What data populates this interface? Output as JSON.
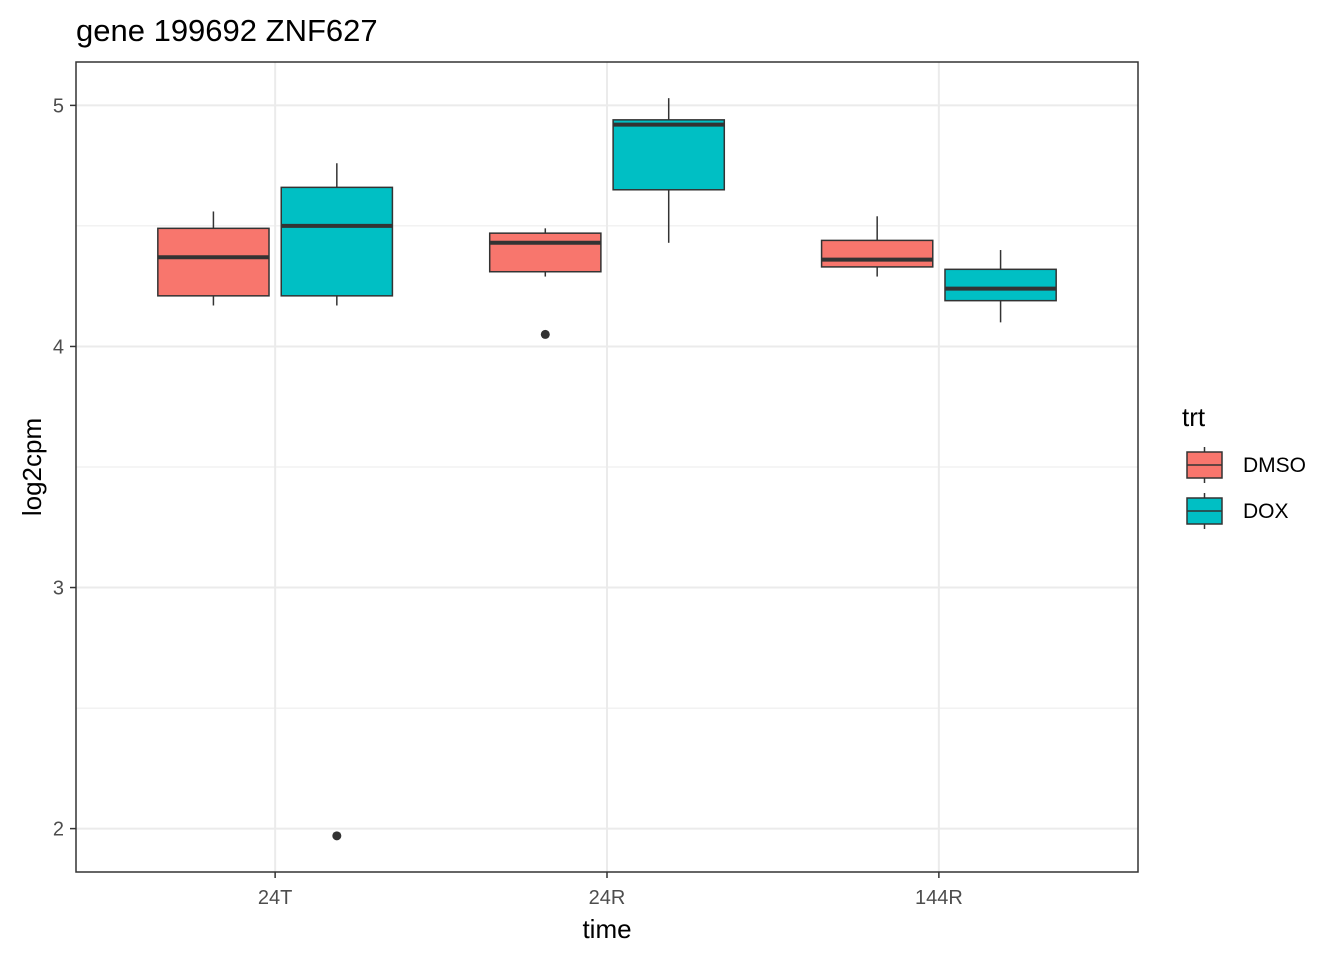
{
  "chart_data": {
    "type": "box",
    "title": "gene 199692 ZNF627",
    "xlabel": "time",
    "ylabel": "log2cpm",
    "categories": [
      "24T",
      "24R",
      "144R"
    ],
    "ylim": [
      1.82,
      5.18
    ],
    "yticks": [
      2,
      3,
      4,
      5
    ],
    "grid": true,
    "legend": {
      "title": "trt",
      "position": "right",
      "entries": [
        {
          "name": "DMSO",
          "color": "#F8766D"
        },
        {
          "name": "DOX",
          "color": "#00BFC4"
        }
      ]
    },
    "series": [
      {
        "name": "DMSO",
        "color": "#F8766D",
        "boxes": [
          {
            "category": "24T",
            "min": 4.17,
            "q1": 4.21,
            "median": 4.37,
            "q3": 4.49,
            "max": 4.56,
            "outliers": []
          },
          {
            "category": "24R",
            "min": 4.29,
            "q1": 4.31,
            "median": 4.43,
            "q3": 4.47,
            "max": 4.49,
            "outliers": [
              4.05
            ]
          },
          {
            "category": "144R",
            "min": 4.29,
            "q1": 4.33,
            "median": 4.36,
            "q3": 4.44,
            "max": 4.54,
            "outliers": []
          }
        ]
      },
      {
        "name": "DOX",
        "color": "#00BFC4",
        "boxes": [
          {
            "category": "24T",
            "min": 4.17,
            "q1": 4.21,
            "median": 4.5,
            "q3": 4.66,
            "max": 4.76,
            "outliers": [
              1.97
            ]
          },
          {
            "category": "24R",
            "min": 4.43,
            "q1": 4.65,
            "median": 4.92,
            "q3": 4.94,
            "max": 5.03,
            "outliers": []
          },
          {
            "category": "144R",
            "min": 4.1,
            "q1": 4.19,
            "median": 4.24,
            "q3": 4.32,
            "max": 4.4,
            "outliers": []
          }
        ]
      }
    ]
  }
}
